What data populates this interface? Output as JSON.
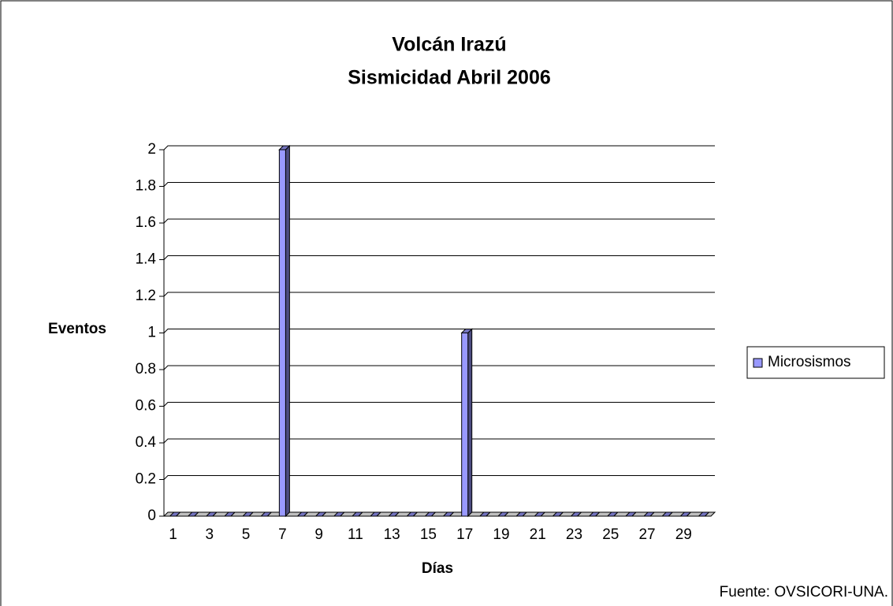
{
  "chart_data": {
    "type": "bar",
    "title": [
      "Volcán Irazú",
      "Sismicidad Abril 2006"
    ],
    "x_label": "Días",
    "y_label": "Eventos",
    "source": "Fuente: OVSICORI-UNA.",
    "categories": [
      "1",
      null,
      "3",
      null,
      "5",
      null,
      "7",
      null,
      "9",
      null,
      "11",
      null,
      "13",
      null,
      "15",
      null,
      "17",
      null,
      "19",
      null,
      "21",
      null,
      "23",
      null,
      "25",
      null,
      "27",
      null,
      "29",
      null
    ],
    "series": [
      {
        "name": "Microsismos",
        "color": "#9999ff",
        "values": [
          0,
          0,
          0,
          0,
          0,
          0,
          2,
          0,
          0,
          0,
          0,
          0,
          0,
          0,
          0,
          0,
          1,
          0,
          0,
          0,
          0,
          0,
          0,
          0,
          0,
          0,
          0,
          0,
          0,
          0
        ]
      }
    ],
    "ylim": [
      0,
      2
    ],
    "yticks": [
      0,
      0.2,
      0.4,
      0.6,
      0.8,
      1,
      1.2,
      1.4,
      1.6,
      1.8,
      2
    ],
    "grid": true,
    "legend": "right"
  }
}
